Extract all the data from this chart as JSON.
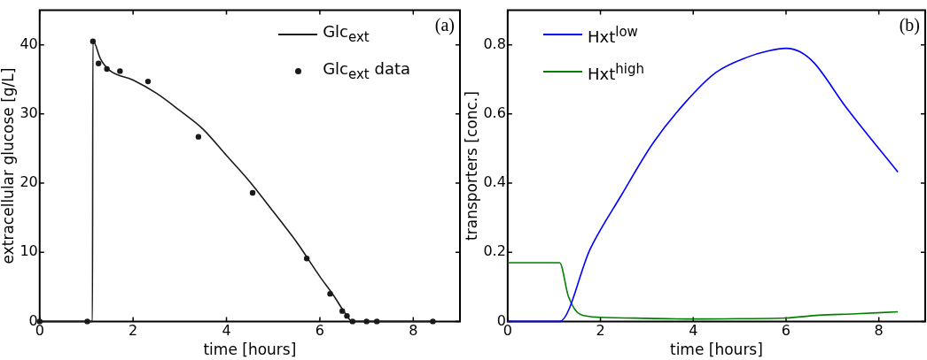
{
  "chart_data": [
    {
      "type": "line",
      "xlabel": "time [hours]",
      "ylabel": "extracellular glucose [g/L]",
      "xlim": [
        0,
        9
      ],
      "ylim": [
        0,
        45
      ],
      "xticks": [
        0,
        2,
        4,
        6,
        8
      ],
      "yticks": [
        0,
        10,
        20,
        30,
        40
      ],
      "grid": false,
      "legend": "top right",
      "annotations": [
        "(a)"
      ],
      "series": [
        {
          "name": "Glc$_{ext}$",
          "type": "line",
          "color": "#1a1a1a",
          "marker": "none",
          "line_style": "solid",
          "x": [
            0,
            1.13,
            1.14,
            1.3,
            1.5,
            2,
            2.5,
            3,
            3.5,
            4,
            4.5,
            5,
            5.5,
            6,
            6.3,
            6.5,
            6.7,
            7,
            8.42
          ],
          "values": [
            0,
            0,
            40.6,
            38,
            36.3,
            34.9,
            33,
            30.5,
            27.8,
            24,
            20.2,
            15.9,
            11.5,
            6.5,
            3.7,
            1.6,
            0,
            0,
            0
          ]
        },
        {
          "name": "Glc$_{ext}$  data",
          "type": "scatter",
          "color": "#1a1a1a",
          "marker": "circle",
          "x": [
            0,
            1.02,
            1.14,
            1.26,
            1.44,
            1.72,
            2.32,
            3.4,
            4.56,
            5.72,
            6.22,
            6.48,
            6.58,
            6.7,
            7.0,
            7.22,
            8.42
          ],
          "values": [
            0,
            0,
            40.5,
            37.3,
            36.5,
            36.2,
            34.7,
            26.7,
            18.6,
            9.1,
            4.0,
            1.5,
            0.8,
            0,
            0,
            0,
            0
          ]
        }
      ]
    },
    {
      "type": "line",
      "xlabel": "time [hours]",
      "ylabel": "transporters [conc.]",
      "xlim": [
        0,
        9
      ],
      "ylim": [
        0,
        0.9
      ],
      "xticks": [
        0,
        2,
        4,
        6,
        8
      ],
      "yticks": [
        0,
        0.2,
        0.4,
        0.6,
        0.8
      ],
      "grid": false,
      "legend": "top left",
      "annotations": [
        "(b)"
      ],
      "series": [
        {
          "name": "Hxt$^{low}$",
          "type": "line",
          "color": "#0000ff",
          "marker": "none",
          "line_style": "solid",
          "x": [
            0,
            1.12,
            1.78,
            2.45,
            3.14,
            3.82,
            4.49,
            5.18,
            5.6,
            6.0,
            6.3,
            6.61,
            7.29,
            8.41
          ],
          "values": [
            0,
            0,
            0.21,
            0.365,
            0.517,
            0.632,
            0.72,
            0.765,
            0.782,
            0.79,
            0.78,
            0.747,
            0.62,
            0.432
          ]
        },
        {
          "name": "Hxt$^{high}$",
          "type": "line",
          "color": "#008000",
          "marker": "none",
          "line_style": "solid",
          "x": [
            0,
            1.12,
            1.31,
            1.57,
            2,
            3,
            4,
            5,
            6,
            6.7,
            7.5,
            8.41
          ],
          "values": [
            0.17,
            0.17,
            0.072,
            0.02,
            0.012,
            0.009,
            0.007,
            0.008,
            0.01,
            0.018,
            0.022,
            0.028
          ]
        }
      ]
    }
  ]
}
